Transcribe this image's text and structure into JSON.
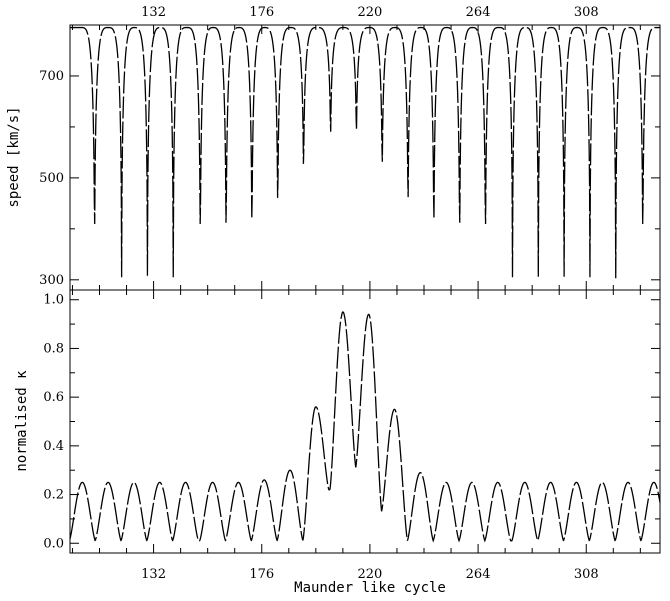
{
  "chart_data": [
    {
      "type": "line",
      "title": "",
      "xlabel": "",
      "ylabel": "speed [km/s]",
      "xlim": [
        98,
        338
      ],
      "ylim": [
        280,
        800
      ],
      "xticks": [
        132,
        176,
        220,
        264,
        308
      ],
      "yticks": [
        300,
        500,
        700
      ],
      "x_tick_labels_top": [
        "132",
        "176",
        "220",
        "264",
        "308"
      ],
      "y_tick_labels": [
        "300",
        "500",
        "700"
      ],
      "series": [
        {
          "period": 10.6,
          "max": 795,
          "minima_x": [
            108,
            119,
            129.5,
            140,
            151,
            161.5,
            172,
            182.5,
            193,
            204,
            214.5,
            225,
            235.5,
            246,
            256.5,
            267,
            278,
            288.5,
            299,
            309.5,
            320,
            331
          ],
          "minima_y": [
            305,
            305,
            308,
            305,
            305,
            308,
            318,
            370,
            455,
            535,
            540,
            460,
            372,
            318,
            308,
            305,
            305,
            306,
            306,
            305,
            303,
            305
          ]
        }
      ]
    },
    {
      "type": "line",
      "title": "",
      "xlabel": "Maunder like cycle",
      "ylabel": "normalised κ",
      "xlim": [
        98,
        338
      ],
      "ylim": [
        -0.04,
        1.04
      ],
      "xticks": [
        132,
        176,
        220,
        264,
        308
      ],
      "yticks": [
        0.0,
        0.2,
        0.4,
        0.6,
        0.8,
        1.0
      ],
      "x_tick_labels": [
        "132",
        "176",
        "220",
        "264",
        "308"
      ],
      "y_tick_labels": [
        "0.0",
        "0.2",
        "0.4",
        "0.6",
        "0.8",
        "1.0"
      ],
      "series": [
        {
          "period": 10.6,
          "min": 0.01,
          "maxima_x": [
            103,
            113.5,
            124,
            134.5,
            145,
            156,
            166.5,
            177,
            187.5,
            198,
            209,
            219.5,
            230,
            240.5,
            251,
            261.5,
            272,
            283,
            293.5,
            304,
            314.5,
            325,
            335.5
          ],
          "maxima_y": [
            0.25,
            0.25,
            0.25,
            0.25,
            0.25,
            0.25,
            0.25,
            0.26,
            0.3,
            0.56,
            0.95,
            0.94,
            0.55,
            0.29,
            0.25,
            0.25,
            0.25,
            0.25,
            0.25,
            0.25,
            0.25,
            0.25,
            0.25
          ],
          "trough_near_center_x": [
            203,
            214.5,
            225
          ],
          "trough_near_center_y": [
            0.22,
            0.31,
            0.13
          ]
        }
      ]
    }
  ]
}
